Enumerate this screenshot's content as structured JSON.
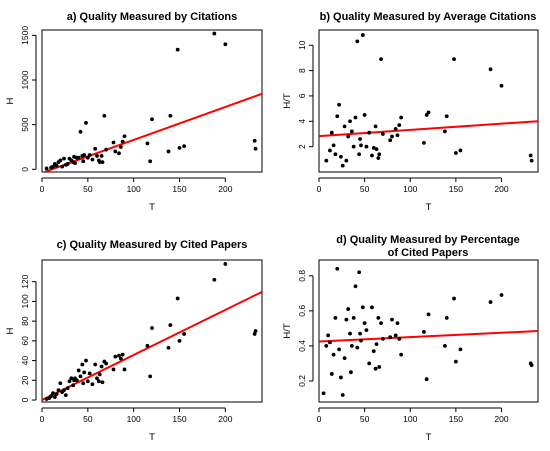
{
  "chart_data": [
    {
      "type": "scatter",
      "title": [
        "a) Quality Measured by Citations"
      ],
      "xlabel": "T",
      "ylabel": "H",
      "xlim": [
        0,
        240
      ],
      "ylim": [
        -30,
        1560
      ],
      "xticks": [
        0,
        50,
        100,
        150,
        200
      ],
      "yticks": [
        0,
        500,
        1000,
        1500
      ],
      "x": [
        5,
        10,
        12,
        14,
        16,
        18,
        20,
        22,
        24,
        26,
        28,
        30,
        32,
        34,
        35,
        36,
        38,
        40,
        42,
        44,
        45,
        46,
        48,
        50,
        52,
        55,
        58,
        60,
        62,
        63,
        65,
        66,
        68,
        70,
        78,
        80,
        84,
        86,
        88,
        90,
        115,
        118,
        120,
        138,
        140,
        148,
        150,
        155,
        188,
        200,
        232,
        233
      ],
      "y": [
        10,
        20,
        30,
        60,
        40,
        80,
        100,
        30,
        120,
        50,
        60,
        120,
        100,
        80,
        140,
        70,
        130,
        130,
        420,
        150,
        90,
        160,
        520,
        130,
        160,
        110,
        230,
        150,
        100,
        80,
        150,
        80,
        600,
        220,
        300,
        200,
        180,
        250,
        310,
        370,
        290,
        90,
        560,
        200,
        600,
        1340,
        240,
        260,
        1520,
        1400,
        320,
        230
      ],
      "fit": {
        "intercept": -40,
        "slope": 3.69,
        "color": "#ff0000"
      },
      "grid": false
    },
    {
      "type": "scatter",
      "title": [
        "b) Quality Measured by Average Citations"
      ],
      "xlabel": "T",
      "ylabel": "H/T",
      "xlim": [
        0,
        240
      ],
      "ylim": [
        0,
        11.2
      ],
      "xticks": [
        0,
        50,
        100,
        150,
        200
      ],
      "yticks": [
        2,
        4,
        6,
        8,
        10
      ],
      "x": [
        8,
        12,
        14,
        16,
        18,
        20,
        22,
        24,
        26,
        28,
        30,
        32,
        34,
        36,
        38,
        40,
        42,
        44,
        45,
        46,
        48,
        50,
        52,
        55,
        58,
        60,
        62,
        63,
        65,
        66,
        68,
        70,
        78,
        80,
        84,
        86,
        88,
        90,
        115,
        118,
        120,
        138,
        140,
        148,
        150,
        155,
        188,
        200,
        232,
        233
      ],
      "y": [
        0.9,
        1.7,
        3.1,
        2.1,
        1.4,
        4.4,
        5.3,
        1.2,
        0.5,
        3.6,
        0.9,
        2.8,
        4.0,
        3.2,
        2.0,
        4.3,
        10.3,
        1.4,
        2.6,
        2.1,
        10.8,
        4.5,
        2.0,
        3.1,
        1.3,
        1.9,
        3.6,
        1.8,
        1.1,
        1.4,
        8.9,
        3.0,
        2.5,
        2.8,
        3.4,
        2.9,
        3.7,
        4.3,
        2.3,
        4.5,
        4.7,
        3.2,
        4.4,
        8.9,
        1.5,
        1.7,
        8.1,
        6.8,
        1.3,
        0.9
      ],
      "fit": {
        "intercept": 2.83,
        "slope": 0.0049,
        "color": "#ff0000"
      },
      "grid": false
    },
    {
      "type": "scatter",
      "title": [
        "c) Quality Measured by Cited Papers"
      ],
      "xlabel": "T",
      "ylabel": "H",
      "xlim": [
        0,
        240
      ],
      "ylim": [
        -2,
        142
      ],
      "xticks": [
        0,
        50,
        100,
        150,
        200
      ],
      "yticks": [
        0,
        20,
        40,
        60,
        80,
        100,
        120
      ],
      "x": [
        5,
        8,
        10,
        12,
        14,
        16,
        18,
        20,
        22,
        24,
        26,
        28,
        30,
        32,
        34,
        35,
        36,
        38,
        40,
        42,
        44,
        45,
        46,
        48,
        50,
        52,
        55,
        58,
        60,
        62,
        63,
        65,
        66,
        68,
        70,
        78,
        80,
        84,
        86,
        88,
        90,
        115,
        118,
        120,
        138,
        140,
        148,
        150,
        155,
        188,
        200,
        232,
        233
      ],
      "y": [
        1,
        2,
        4,
        7,
        3,
        6,
        10,
        17,
        8,
        10,
        5,
        12,
        19,
        22,
        15,
        20,
        22,
        20,
        30,
        24,
        36,
        17,
        28,
        40,
        19,
        27,
        16,
        36,
        22,
        19,
        26,
        34,
        18,
        39,
        37,
        31,
        44,
        45,
        42,
        46,
        31,
        55,
        24,
        73,
        53,
        76,
        103,
        60,
        67,
        122,
        138,
        67,
        70
      ],
      "fit": {
        "intercept": 0,
        "slope": 0.457,
        "color": "#ff0000"
      },
      "grid": false
    },
    {
      "type": "scatter",
      "title": [
        "d) Quality Measured by Percentage",
        "of Cited Papers"
      ],
      "xlabel": "T",
      "ylabel": "H/T",
      "xlim": [
        0,
        240
      ],
      "ylim": [
        0.08,
        0.89
      ],
      "xticks": [
        0,
        50,
        100,
        150,
        200
      ],
      "yticks": [
        0.2,
        0.4,
        0.6,
        0.8
      ],
      "x": [
        5,
        8,
        10,
        12,
        14,
        16,
        18,
        20,
        22,
        24,
        26,
        28,
        30,
        32,
        34,
        35,
        36,
        38,
        40,
        42,
        44,
        45,
        46,
        48,
        50,
        52,
        55,
        58,
        60,
        62,
        63,
        65,
        66,
        68,
        70,
        78,
        80,
        84,
        86,
        88,
        90,
        115,
        118,
        120,
        138,
        140,
        148,
        150,
        155,
        188,
        200,
        232,
        233
      ],
      "y": [
        0.13,
        0.4,
        0.46,
        0.42,
        0.24,
        0.35,
        0.56,
        0.84,
        0.38,
        0.22,
        0.12,
        0.33,
        0.55,
        0.61,
        0.47,
        0.25,
        0.4,
        0.56,
        0.74,
        0.39,
        0.82,
        0.47,
        0.43,
        0.62,
        0.53,
        0.49,
        0.3,
        0.62,
        0.37,
        0.27,
        0.41,
        0.56,
        0.28,
        0.53,
        0.44,
        0.45,
        0.55,
        0.46,
        0.53,
        0.44,
        0.35,
        0.48,
        0.21,
        0.58,
        0.4,
        0.56,
        0.67,
        0.31,
        0.38,
        0.65,
        0.69,
        0.3,
        0.29
      ],
      "fit": {
        "intercept": 0.425,
        "slope": 0.00025,
        "color": "#ff0000"
      },
      "grid": false
    }
  ]
}
